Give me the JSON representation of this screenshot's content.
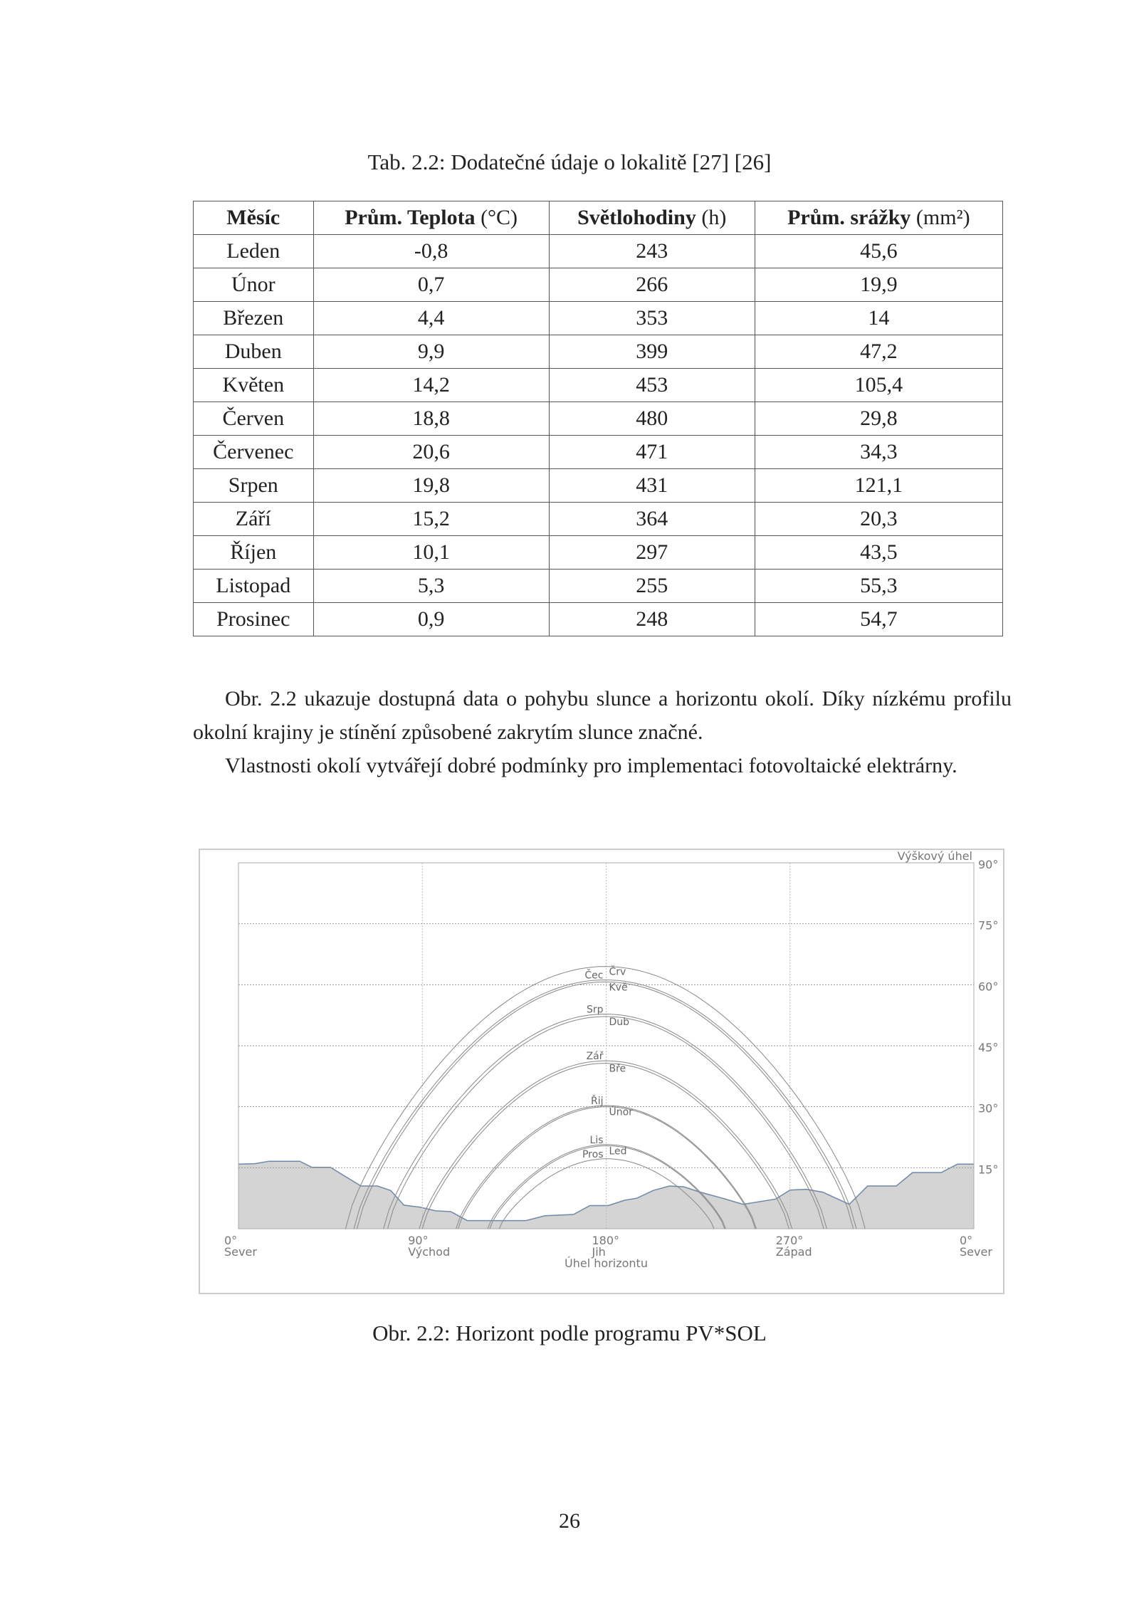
{
  "table": {
    "caption": "Tab. 2.2: Dodatečné údaje o lokalitě [27] [26]",
    "headers": [
      {
        "bold": "Měsíc",
        "unit": ""
      },
      {
        "bold": "Prům. Teplota",
        "unit": "(°C)"
      },
      {
        "bold": "Světlohodiny",
        "unit": "(h)"
      },
      {
        "bold": "Prům. srážky",
        "unit": "(mm²)"
      }
    ],
    "rows": [
      [
        "Leden",
        "-0,8",
        "243",
        "45,6"
      ],
      [
        "Únor",
        "0,7",
        "266",
        "19,9"
      ],
      [
        "Březen",
        "4,4",
        "353",
        "14"
      ],
      [
        "Duben",
        "9,9",
        "399",
        "47,2"
      ],
      [
        "Květen",
        "14,2",
        "453",
        "105,4"
      ],
      [
        "Červen",
        "18,8",
        "480",
        "29,8"
      ],
      [
        "Červenec",
        "20,6",
        "471",
        "34,3"
      ],
      [
        "Srpen",
        "19,8",
        "431",
        "121,1"
      ],
      [
        "Září",
        "15,2",
        "364",
        "20,3"
      ],
      [
        "Říjen",
        "10,1",
        "297",
        "43,5"
      ],
      [
        "Listopad",
        "5,3",
        "255",
        "55,3"
      ],
      [
        "Prosinec",
        "0,9",
        "248",
        "54,7"
      ]
    ]
  },
  "paragraphs": [
    "Obr. 2.2 ukazuje dostupná data o pohybu slunce a horizontu okolí. Díky nízkému profilu okolní krajiny je stínění způsobené zakrytím slunce značné.",
    "Vlastnosti okolí vytvářejí dobré podmínky pro implementaci fotovoltaické elektrárny."
  ],
  "figure_caption": "Obr. 2.2: Horizont podle programu PV*SOL",
  "page_number": "26",
  "chart_data": {
    "type": "area",
    "ylabel": "Výškový úhel",
    "xlabel": "Úhel horizontu",
    "xlim": [
      0,
      360
    ],
    "ylim": [
      0,
      90
    ],
    "grid": true,
    "y_ticks": [
      "15°",
      "30°",
      "45°",
      "60°",
      "75°",
      "90°"
    ],
    "y_tick_values": [
      15,
      30,
      45,
      60,
      75,
      90
    ],
    "x_ticks": [
      {
        "value": 0,
        "deg": "0°",
        "dir": "Sever"
      },
      {
        "value": 90,
        "deg": "90°",
        "dir": "Východ"
      },
      {
        "value": 180,
        "deg": "180°",
        "dir": "Jih"
      },
      {
        "value": 270,
        "deg": "270°",
        "dir": "Západ"
      },
      {
        "value": 360,
        "deg": "0°",
        "dir": "Sever"
      }
    ],
    "horizon": {
      "azimuth": [
        0,
        8,
        15,
        30,
        36,
        45,
        60,
        68,
        74.5,
        81,
        89,
        96.5,
        104,
        112,
        140.7,
        150,
        164,
        172,
        181,
        189,
        195,
        203,
        211,
        218,
        226,
        237,
        247,
        263,
        270,
        278,
        286,
        299,
        308,
        322,
        330,
        344,
        352,
        360
      ],
      "altitude": [
        15.9,
        16,
        16.6,
        16.6,
        15.1,
        15.1,
        10.5,
        10.5,
        9.4,
        5.8,
        5.3,
        4.4,
        4.2,
        2,
        2,
        3.2,
        3.5,
        5.7,
        5.7,
        7,
        7.5,
        9.4,
        10.5,
        10.3,
        9,
        7.5,
        6,
        7.3,
        9.5,
        9.7,
        9,
        6,
        10.5,
        10.5,
        13.8,
        13.8,
        15.9,
        15.9
      ],
      "fill": "#d4d4d4",
      "line": "#7088a8"
    },
    "sun_paths": [
      {
        "label": "Červ",
        "display": "Črv",
        "side": "right",
        "sunrise_az": 52.4,
        "sunset_az": 306.8,
        "max_alt": 64.5
      },
      {
        "label": "Čec",
        "display": "Čec",
        "side": "left",
        "sunrise_az": 56.5,
        "sunset_az": 302.5,
        "max_alt": 61.2
      },
      {
        "label": "Kvě",
        "display": "Kvě",
        "side": "right",
        "sunrise_az": 58,
        "sunset_az": 301,
        "max_alt": 60.7
      },
      {
        "label": "Srp",
        "display": "Srp",
        "side": "left",
        "sunrise_az": 71,
        "sunset_az": 288,
        "max_alt": 52.8
      },
      {
        "label": "Dub",
        "display": "Dub",
        "side": "right",
        "sunrise_az": 73,
        "sunset_az": 286.5,
        "max_alt": 52.2
      },
      {
        "label": "Zář",
        "display": "Zář",
        "side": "left",
        "sunrise_az": 88.5,
        "sunset_az": 271,
        "max_alt": 41.3
      },
      {
        "label": "Bře",
        "display": "Bře",
        "side": "right",
        "sunrise_az": 90,
        "sunset_az": 269.5,
        "max_alt": 40.7
      },
      {
        "label": "Řij",
        "display": "Řij",
        "side": "left",
        "sunrise_az": 106.5,
        "sunset_az": 253.5,
        "max_alt": 30.3
      },
      {
        "label": "Únor",
        "display": "Únor",
        "side": "right",
        "sunrise_az": 107.5,
        "sunset_az": 253,
        "max_alt": 30
      },
      {
        "label": "Lis",
        "display": "Lis",
        "side": "left",
        "sunrise_az": 122,
        "sunset_az": 238.5,
        "max_alt": 20.7
      },
      {
        "label": "Led",
        "display": "Led",
        "side": "right",
        "sunrise_az": 123,
        "sunset_az": 238,
        "max_alt": 20.4
      },
      {
        "label": "Pros",
        "display": "Pros",
        "side": "left",
        "sunrise_az": 127.7,
        "sunset_az": 232.8,
        "max_alt": 17.2
      }
    ]
  }
}
